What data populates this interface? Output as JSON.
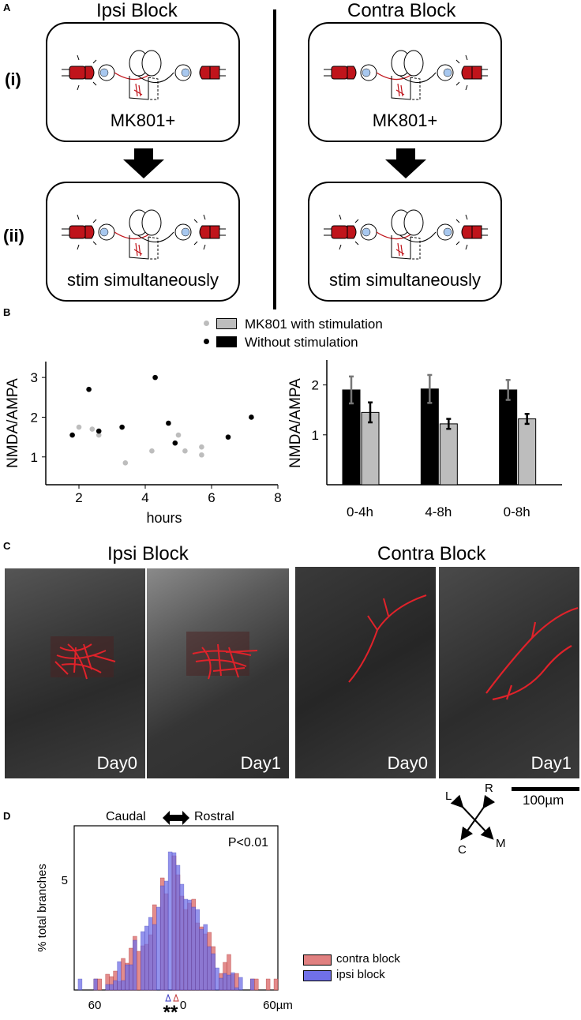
{
  "panel_letters": {
    "a": "A",
    "b": "B",
    "c": "C",
    "d": "D"
  },
  "panel_a": {
    "ipsi_title": "Ipsi Block",
    "contra_title": "Contra Block",
    "row_i": "(i)",
    "row_ii": "(ii)",
    "box_label_mk801": "MK801+",
    "box_label_stim": "stim simultaneously",
    "colors": {
      "led": "#c0141b",
      "eye": "#a8c8ef",
      "axon_red": "#c0141b"
    }
  },
  "panel_b": {
    "legend": {
      "gray": "MK801 with stimulation",
      "black": "Without stimulation"
    },
    "colors": {
      "gray": "#bdbdbd",
      "black": "#000000"
    }
  },
  "panel_c": {
    "ipsi_title": "Ipsi Block",
    "contra_title": "Contra Block",
    "labels": {
      "ipsi_day0": "Day0",
      "ipsi_day1": "Day1",
      "contra_day0": "Day0",
      "contra_day1": "Day1"
    },
    "compass": {
      "l": "L",
      "r": "R",
      "m": "M",
      "c": "C"
    },
    "scalebar": "100µm"
  },
  "panel_d": {
    "direction_left": "Caudal",
    "direction_right": "Rostral",
    "legend": {
      "contra": "contra block",
      "ipsi": "ipsi block"
    },
    "colors": {
      "contra": "#e08080",
      "ipsi": "#7070e8",
      "overlap": "#6a2a9a"
    },
    "stars": "**"
  },
  "chart_data": [
    {
      "type": "scatter",
      "ylabel": "NMDA/AMPA",
      "xlabel": "hours",
      "xlim": [
        1,
        8
      ],
      "ylim": [
        0.3,
        3.4
      ],
      "xticks": [
        "2",
        "4",
        "6",
        "8"
      ],
      "yticks": [
        "1",
        "2",
        "3"
      ],
      "series": [
        {
          "name": "MK801 with stimulation",
          "color": "#bdbdbd",
          "points": [
            [
              2.0,
              1.75
            ],
            [
              2.4,
              1.7
            ],
            [
              2.6,
              1.55
            ],
            [
              3.4,
              0.85
            ],
            [
              4.2,
              1.15
            ],
            [
              5.0,
              1.55
            ],
            [
              5.2,
              1.15
            ],
            [
              5.7,
              1.25
            ],
            [
              5.7,
              1.05
            ]
          ]
        },
        {
          "name": "Without stimulation",
          "color": "#000000",
          "points": [
            [
              1.8,
              1.55
            ],
            [
              2.3,
              2.7
            ],
            [
              2.6,
              1.65
            ],
            [
              3.3,
              1.75
            ],
            [
              4.3,
              3.0
            ],
            [
              4.7,
              1.85
            ],
            [
              4.9,
              1.35
            ],
            [
              6.5,
              1.5
            ],
            [
              7.2,
              2.0
            ]
          ]
        }
      ]
    },
    {
      "type": "bar",
      "ylabel": "NMDA/AMPA",
      "ylim": [
        0,
        2.5
      ],
      "yticks": [
        "1",
        "2"
      ],
      "categories": [
        "0-4h",
        "4-8h",
        "0-8h"
      ],
      "series": [
        {
          "name": "Without stimulation",
          "color": "#000000",
          "values": [
            1.9,
            1.92,
            1.9
          ],
          "err": [
            0.27,
            0.28,
            0.2
          ]
        },
        {
          "name": "MK801 with stimulation",
          "color": "#bdbdbd",
          "values": [
            1.45,
            1.22,
            1.32
          ],
          "err": [
            0.2,
            0.1,
            0.1
          ]
        }
      ]
    },
    {
      "type": "bar",
      "ylabel": "% total branches",
      "xticks": [
        "60",
        "0",
        "60µm"
      ],
      "yticks": [
        "5"
      ],
      "annotation": "P<0.01",
      "series": [
        {
          "name": "contra block",
          "color": "#e08080"
        },
        {
          "name": "ipsi block",
          "color": "#7070e8"
        }
      ]
    }
  ]
}
